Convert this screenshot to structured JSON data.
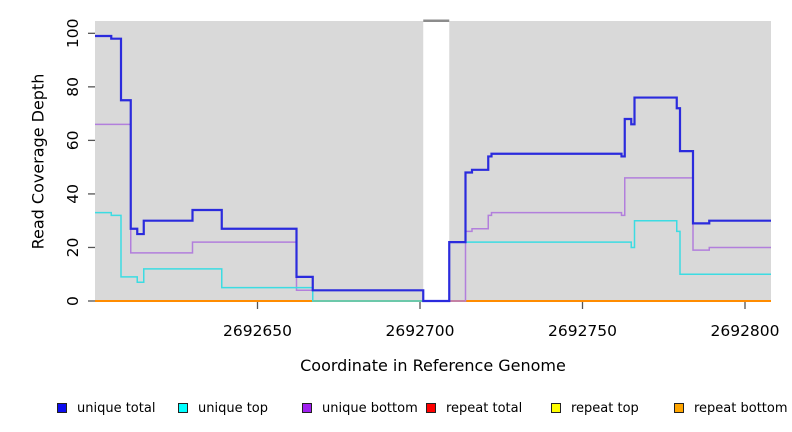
{
  "chart_data": {
    "type": "line",
    "step": true,
    "title": "",
    "xlabel": "Coordinate in Reference Genome",
    "ylabel": "Read Coverage Depth",
    "xlim": [
      2692600,
      2692808
    ],
    "ylim": [
      0,
      104.6
    ],
    "x_ticks": [
      2692650,
      2692700,
      2692750,
      2692800
    ],
    "y_ticks": [
      0,
      20,
      40,
      60,
      80,
      100
    ],
    "grid": false,
    "plot_bg_color": "#d9d9d9",
    "gap_band": {
      "from": 2692701,
      "to": 2692709,
      "color": "#ffffff",
      "top_edge_color": "#8c8c8c"
    },
    "legend_position": "bottom",
    "series": [
      {
        "name": "unique total",
        "line_color": "#2b2bdd",
        "legend_color": "#0d0df0",
        "line_width": 2.2,
        "points": [
          [
            2692600,
            99
          ],
          [
            2692605,
            98
          ],
          [
            2692608,
            75
          ],
          [
            2692611,
            27
          ],
          [
            2692613,
            25
          ],
          [
            2692615,
            30
          ],
          [
            2692630,
            34
          ],
          [
            2692639,
            27
          ],
          [
            2692662,
            9
          ],
          [
            2692667,
            4
          ],
          [
            2692701,
            0
          ],
          [
            2692709,
            22
          ],
          [
            2692714,
            48
          ],
          [
            2692716,
            49
          ],
          [
            2692721,
            54
          ],
          [
            2692722,
            55
          ],
          [
            2692762,
            54
          ],
          [
            2692763,
            68
          ],
          [
            2692765,
            66
          ],
          [
            2692766,
            76
          ],
          [
            2692779,
            72
          ],
          [
            2692780,
            56
          ],
          [
            2692784,
            29
          ],
          [
            2692789,
            30
          ]
        ]
      },
      {
        "name": "unique top",
        "line_color": "#3cdce2",
        "legend_color": "#00ffff",
        "line_width": 1.5,
        "points": [
          [
            2692600,
            33
          ],
          [
            2692605,
            32
          ],
          [
            2692608,
            9
          ],
          [
            2692613,
            7
          ],
          [
            2692615,
            12
          ],
          [
            2692639,
            5
          ],
          [
            2692667,
            0
          ],
          [
            2692709,
            22
          ],
          [
            2692765,
            20
          ],
          [
            2692766,
            30
          ],
          [
            2692779,
            26
          ],
          [
            2692780,
            10
          ]
        ]
      },
      {
        "name": "unique bottom",
        "line_color": "#b27fdc",
        "legend_color": "#a020f0",
        "line_width": 1.5,
        "points": [
          [
            2692600,
            66
          ],
          [
            2692611,
            18
          ],
          [
            2692630,
            22
          ],
          [
            2692662,
            4
          ],
          [
            2692701,
            0
          ],
          [
            2692714,
            26
          ],
          [
            2692716,
            27
          ],
          [
            2692721,
            32
          ],
          [
            2692722,
            33
          ],
          [
            2692762,
            32
          ],
          [
            2692763,
            46
          ],
          [
            2692784,
            19
          ],
          [
            2692789,
            20
          ]
        ]
      },
      {
        "name": "repeat total",
        "line_color": "#dd0000",
        "legend_color": "#ff0000",
        "line_width": 1.5,
        "points": [
          [
            2692600,
            0
          ]
        ]
      },
      {
        "name": "repeat top",
        "line_color": "#ffff00",
        "legend_color": "#ffff00",
        "line_width": 1.5,
        "points": [
          [
            2692600,
            0
          ]
        ]
      },
      {
        "name": "repeat bottom",
        "line_color": "#ff8c00",
        "legend_color": "#ffa500",
        "line_width": 2,
        "points": [
          [
            2692600,
            0
          ]
        ]
      }
    ],
    "draw_order": [
      3,
      4,
      5,
      2,
      1,
      0
    ]
  }
}
